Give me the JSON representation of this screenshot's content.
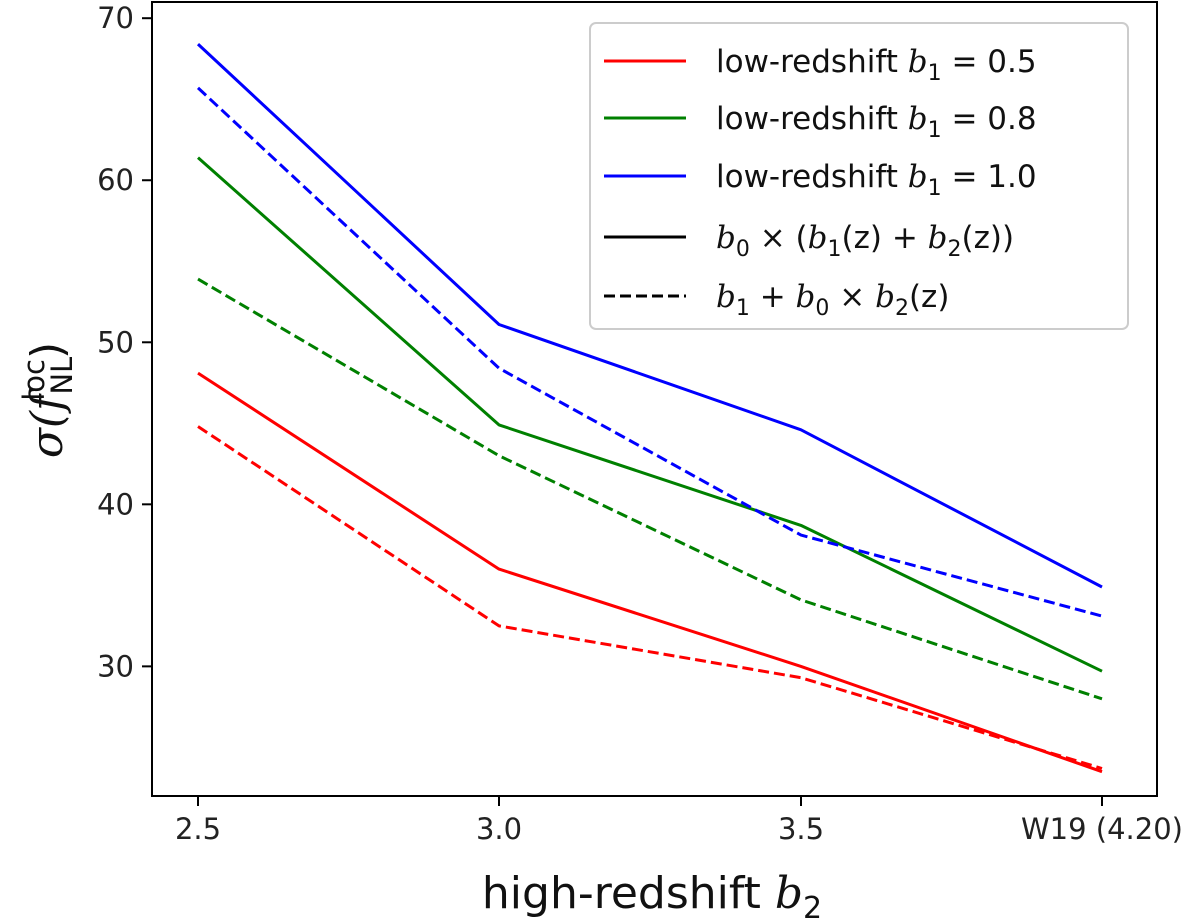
{
  "chart_data": {
    "type": "line",
    "xlabel": {
      "text": "high-redshift ",
      "sym": "b",
      "sub": "2"
    },
    "ylabel": {
      "sigma": "σ(",
      "f": "f",
      "sub": "NL",
      "sup": "loc",
      "close": ")"
    },
    "categories": [
      "2.5",
      "3.0",
      "3.5",
      "W19 (4.20)"
    ],
    "ylim": [
      22,
      71
    ],
    "yticks": [
      30,
      40,
      50,
      60,
      70
    ],
    "grid": false,
    "legend_position": "top-right",
    "series": [
      {
        "name": "low-redshift b1 = 0.5 · b0 × (b1(z) + b2(z))",
        "color": "#ff0000",
        "style": "solid",
        "values": [
          48.1,
          36.0,
          30.0,
          23.5
        ]
      },
      {
        "name": "low-redshift b1 = 0.5 · b1 + b0 × b2(z)",
        "color": "#ff0000",
        "style": "dashed",
        "values": [
          44.8,
          32.5,
          29.3,
          23.7
        ]
      },
      {
        "name": "low-redshift b1 = 0.8 · b0 × (b1(z) + b2(z))",
        "color": "#008000",
        "style": "solid",
        "values": [
          61.4,
          44.9,
          38.7,
          29.7
        ]
      },
      {
        "name": "low-redshift b1 = 0.8 · b1 + b0 × b2(z)",
        "color": "#008000",
        "style": "dashed",
        "values": [
          53.9,
          43.0,
          34.1,
          28.0
        ]
      },
      {
        "name": "low-redshift b1 = 1.0 · b0 × (b1(z) + b2(z))",
        "color": "#0000ff",
        "style": "solid",
        "values": [
          68.4,
          51.1,
          44.6,
          34.9
        ]
      },
      {
        "name": "low-redshift b1 = 1.0 · b1 + b0 × b2(z)",
        "color": "#0000ff",
        "style": "dashed",
        "values": [
          65.7,
          48.4,
          38.1,
          33.1
        ]
      }
    ],
    "legend": [
      {
        "color": "#ff0000",
        "style": "solid",
        "prefix": "low-redshift ",
        "sym": "b",
        "sub": "1",
        "rest": " = 0.5"
      },
      {
        "color": "#008000",
        "style": "solid",
        "prefix": "low-redshift ",
        "sym": "b",
        "sub": "1",
        "rest": " = 0.8"
      },
      {
        "color": "#0000ff",
        "style": "solid",
        "prefix": "low-redshift ",
        "sym": "b",
        "sub": "1",
        "rest": " = 1.0"
      },
      {
        "color": "#000000",
        "style": "solid",
        "formula": [
          [
            "b",
            "0"
          ],
          [
            " × (",
            ""
          ],
          [
            "b",
            "1"
          ],
          [
            "(z) + ",
            ""
          ],
          [
            "b",
            "2"
          ],
          [
            "(z))",
            ""
          ]
        ]
      },
      {
        "color": "#000000",
        "style": "dashed",
        "formula": [
          [
            "b",
            "1"
          ],
          [
            " + ",
            ""
          ],
          [
            "b",
            "0"
          ],
          [
            " × ",
            ""
          ],
          [
            "b",
            "2"
          ],
          [
            "(z)",
            ""
          ]
        ]
      }
    ]
  }
}
